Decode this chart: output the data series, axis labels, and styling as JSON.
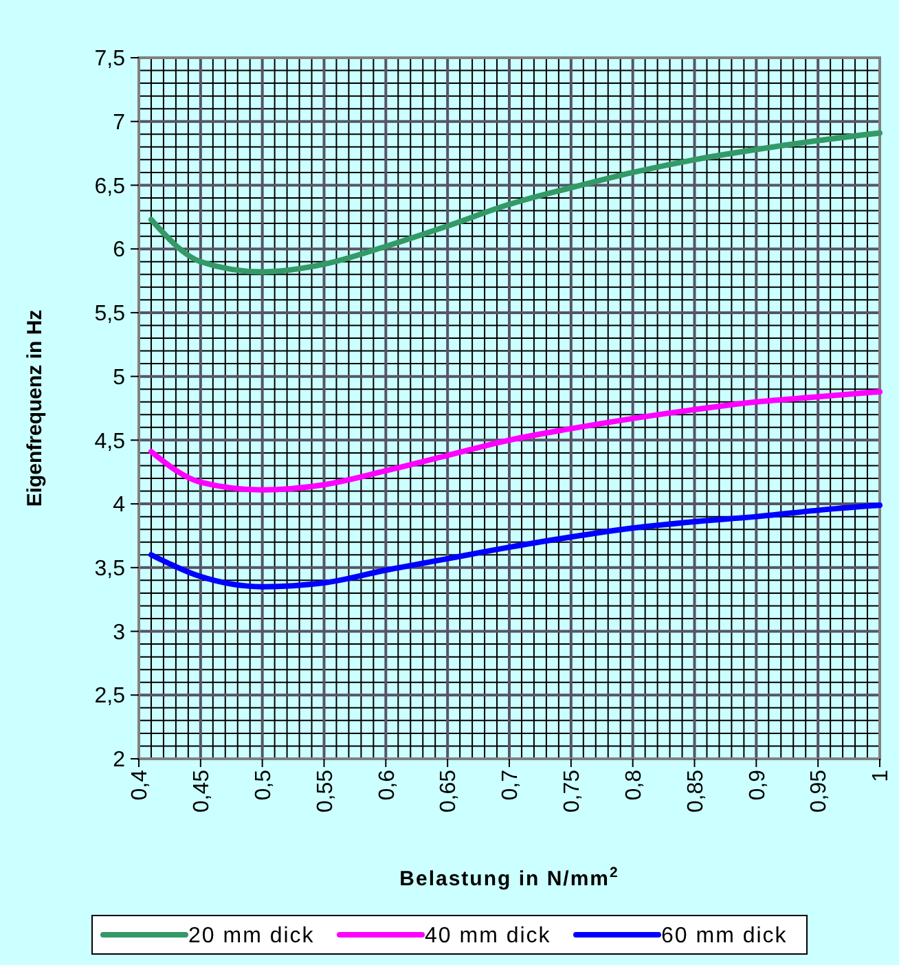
{
  "chart_data": {
    "type": "line",
    "xlabel": "Belastung in N/mm$^{2}$",
    "ylabel": "Eigenfrequenz in Hz",
    "x": [
      0.41,
      0.45,
      0.5,
      0.55,
      0.6,
      0.65,
      0.7,
      0.75,
      0.8,
      0.85,
      0.9,
      0.95,
      1.0
    ],
    "series": [
      {
        "name": "20 mm dick",
        "color": "#339966",
        "values": [
          6.23,
          5.9,
          5.82,
          5.88,
          6.02,
          6.18,
          6.35,
          6.48,
          6.6,
          6.7,
          6.78,
          6.85,
          6.91
        ]
      },
      {
        "name": "40 mm dick",
        "color": "#ff00ff",
        "values": [
          4.41,
          4.17,
          4.11,
          4.15,
          4.26,
          4.38,
          4.5,
          4.59,
          4.67,
          4.74,
          4.8,
          4.84,
          4.88
        ]
      },
      {
        "name": "60 mm dick",
        "color": "#0000ff",
        "values": [
          3.6,
          3.43,
          3.35,
          3.38,
          3.48,
          3.57,
          3.66,
          3.74,
          3.81,
          3.86,
          3.9,
          3.95,
          3.99
        ]
      }
    ],
    "xlim": [
      0.4,
      1
    ],
    "ylim": [
      2,
      7.5
    ],
    "xticks": [
      {
        "value": 0.4,
        "label": "0,4"
      },
      {
        "value": 0.45,
        "label": "0,45"
      },
      {
        "value": 0.5,
        "label": "0,5"
      },
      {
        "value": 0.55,
        "label": "0,55"
      },
      {
        "value": 0.6,
        "label": "0,6"
      },
      {
        "value": 0.65,
        "label": "0,65"
      },
      {
        "value": 0.7,
        "label": "0,7"
      },
      {
        "value": 0.75,
        "label": "0,75"
      },
      {
        "value": 0.8,
        "label": "0,8"
      },
      {
        "value": 0.85,
        "label": "0,85"
      },
      {
        "value": 0.9,
        "label": "0,9"
      },
      {
        "value": 0.95,
        "label": "0,95"
      },
      {
        "value": 1,
        "label": "1"
      }
    ],
    "yticks": [
      2,
      {
        "value": 2.5,
        "label": "2,5"
      },
      3,
      {
        "value": 3.5,
        "label": "3,5"
      },
      4,
      {
        "value": 4.5,
        "label": "4,5"
      },
      5,
      {
        "value": 5.5,
        "label": "5,5"
      },
      6,
      {
        "value": 6.5,
        "label": "6,5"
      },
      7,
      {
        "value": 7.5,
        "label": "7,5"
      }
    ],
    "grid": true,
    "legend": "bottom",
    "marker": "none",
    "line_style": "solid"
  }
}
